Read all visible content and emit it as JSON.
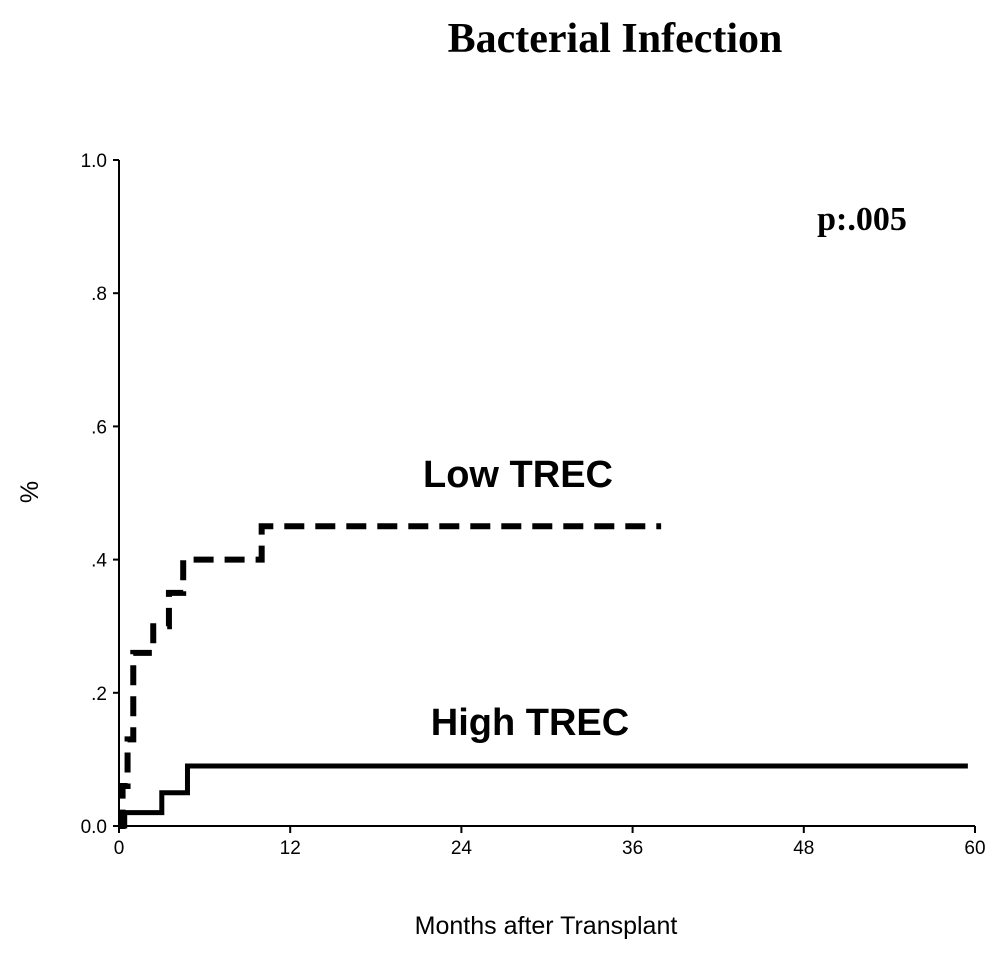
{
  "chart_data": {
    "type": "line",
    "title": "Bacterial Infection",
    "annotation": "p:.005",
    "xlabel": "Months after Transplant",
    "ylabel": "%",
    "xlim": [
      0,
      60
    ],
    "ylim": [
      0,
      1
    ],
    "x_ticks": [
      0,
      12,
      24,
      36,
      48,
      60
    ],
    "x_tick_labels": [
      "0",
      "12",
      "24",
      "36",
      "48",
      "60"
    ],
    "y_ticks": [
      0,
      0.2,
      0.4,
      0.6,
      0.8,
      1.0
    ],
    "y_tick_labels": [
      "0.0",
      ".2",
      ".4",
      ".6",
      ".8",
      "1.0"
    ],
    "grid": false,
    "series": [
      {
        "name": "Low TREC",
        "style": "dashed",
        "step": true,
        "color": "#000000",
        "x": [
          0,
          0.25,
          0.6,
          1.0,
          1.3,
          2.4,
          3.5,
          4.5,
          10.0,
          38.0
        ],
        "y": [
          0,
          0.06,
          0.13,
          0.26,
          0.26,
          0.3,
          0.35,
          0.4,
          0.45,
          0.45
        ]
      },
      {
        "name": "High TREC",
        "style": "solid",
        "step": true,
        "color": "#000000",
        "x": [
          0,
          0.4,
          3.0,
          4.8,
          59.5
        ],
        "y": [
          0,
          0.02,
          0.05,
          0.09,
          0.09
        ]
      }
    ]
  }
}
